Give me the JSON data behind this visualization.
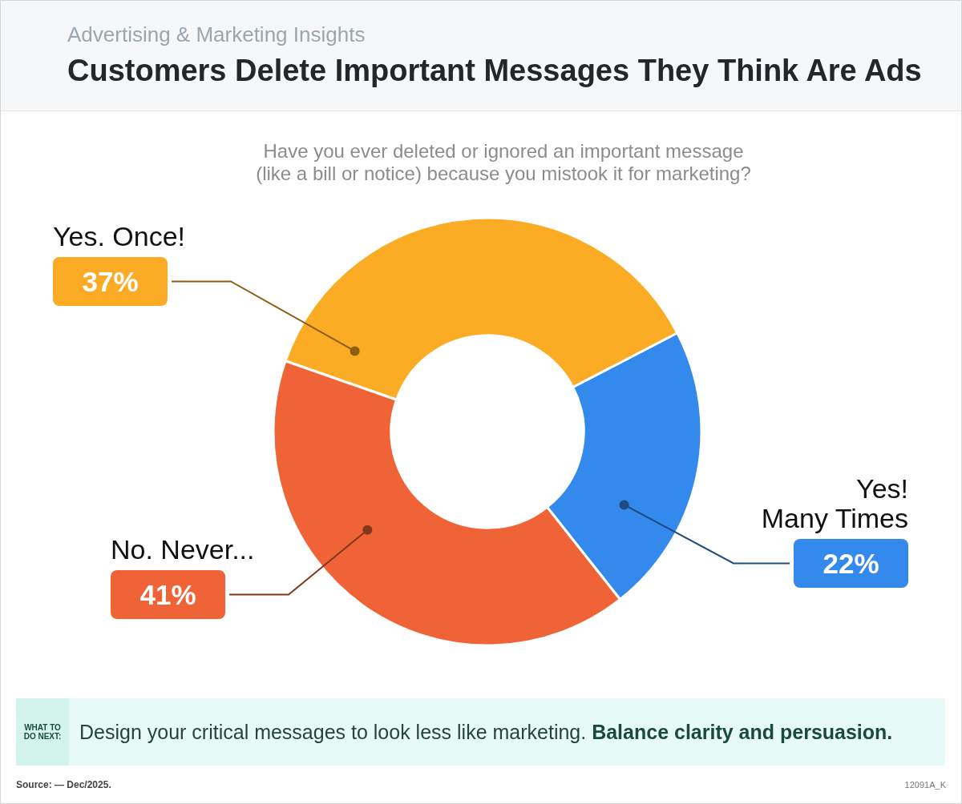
{
  "chart_data": {
    "type": "donut",
    "title": "Customers Delete Important Messages They Think Are Ads",
    "subtitle": "Have you ever deleted or ignored an important message\n(like a bill or notice) because you mistook it for marketing?",
    "categories": [
      "Yes!\nMany Times",
      "Yes. Once!",
      "No. Never..."
    ],
    "values": [
      22,
      37,
      41
    ],
    "colors": [
      "#3489ec",
      "#fcab25",
      "#ef6337"
    ],
    "value_labels": [
      "22%",
      "37%",
      "41%"
    ],
    "annotations": [
      "Advertising & Marketing Insights",
      "WHAT TO DO NEXT:",
      "Design your critical messages to look less like marketing.",
      "Balance clarity and persuasion.",
      "Source: — Dec/2025.",
      "12091A_K"
    ]
  }
}
